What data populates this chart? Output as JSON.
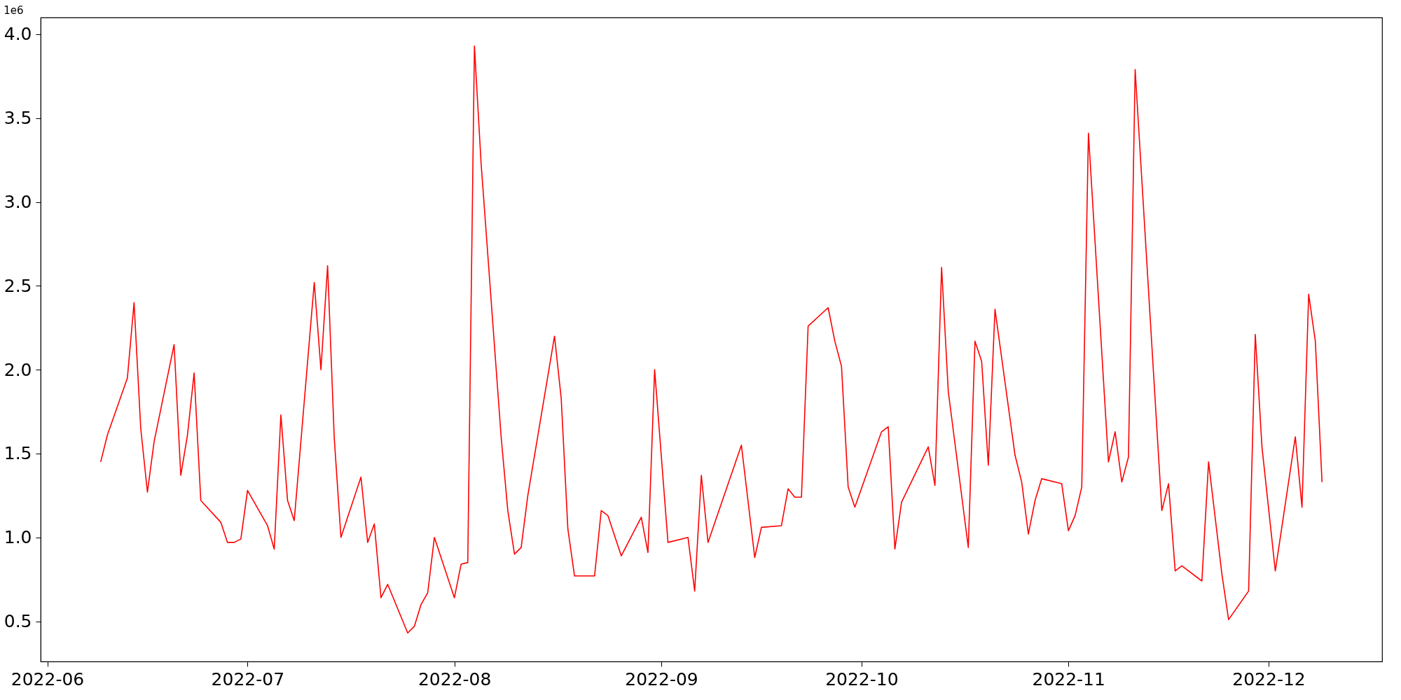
{
  "chart_data": {
    "type": "line",
    "annotations": [
      "1e6"
    ],
    "x": [
      "2022-06-09",
      "2022-06-10",
      "2022-06-13",
      "2022-06-14",
      "2022-06-15",
      "2022-06-16",
      "2022-06-17",
      "2022-06-20",
      "2022-06-21",
      "2022-06-22",
      "2022-06-23",
      "2022-06-24",
      "2022-06-27",
      "2022-06-28",
      "2022-06-29",
      "2022-06-30",
      "2022-07-01",
      "2022-07-04",
      "2022-07-05",
      "2022-07-06",
      "2022-07-07",
      "2022-07-08",
      "2022-07-11",
      "2022-07-12",
      "2022-07-13",
      "2022-07-14",
      "2022-07-15",
      "2022-07-18",
      "2022-07-19",
      "2022-07-20",
      "2022-07-21",
      "2022-07-22",
      "2022-07-25",
      "2022-07-26",
      "2022-07-27",
      "2022-07-28",
      "2022-07-29",
      "2022-08-01",
      "2022-08-02",
      "2022-08-03",
      "2022-08-04",
      "2022-08-05",
      "2022-08-08",
      "2022-08-09",
      "2022-08-10",
      "2022-08-11",
      "2022-08-12",
      "2022-08-16",
      "2022-08-17",
      "2022-08-18",
      "2022-08-19",
      "2022-08-22",
      "2022-08-23",
      "2022-08-24",
      "2022-08-26",
      "2022-08-29",
      "2022-08-30",
      "2022-08-31",
      "2022-09-02",
      "2022-09-05",
      "2022-09-06",
      "2022-09-07",
      "2022-09-08",
      "2022-09-13",
      "2022-09-15",
      "2022-09-16",
      "2022-09-19",
      "2022-09-20",
      "2022-09-21",
      "2022-09-22",
      "2022-09-23",
      "2022-09-26",
      "2022-09-27",
      "2022-09-28",
      "2022-09-29",
      "2022-09-30",
      "2022-10-04",
      "2022-10-05",
      "2022-10-06",
      "2022-10-07",
      "2022-10-11",
      "2022-10-12",
      "2022-10-13",
      "2022-10-14",
      "2022-10-17",
      "2022-10-18",
      "2022-10-19",
      "2022-10-20",
      "2022-10-21",
      "2022-10-24",
      "2022-10-25",
      "2022-10-26",
      "2022-10-27",
      "2022-10-28",
      "2022-10-31",
      "2022-11-01",
      "2022-11-02",
      "2022-11-03",
      "2022-11-04",
      "2022-11-07",
      "2022-11-08",
      "2022-11-09",
      "2022-11-10",
      "2022-11-11",
      "2022-11-15",
      "2022-11-16",
      "2022-11-17",
      "2022-11-18",
      "2022-11-21",
      "2022-11-22",
      "2022-11-24",
      "2022-11-25",
      "2022-11-28",
      "2022-11-29",
      "2022-11-30",
      "2022-12-02",
      "2022-12-05",
      "2022-12-06",
      "2022-12-07",
      "2022-12-08",
      "2022-12-09"
    ],
    "series": [
      {
        "color": "#ff0000",
        "values": [
          1.45,
          1.61,
          1.95,
          2.4,
          1.65,
          1.27,
          1.57,
          2.15,
          1.37,
          1.61,
          1.98,
          1.22,
          1.09,
          0.97,
          0.97,
          0.99,
          1.28,
          1.07,
          0.93,
          1.73,
          1.22,
          1.1,
          2.52,
          2.0,
          2.62,
          1.59,
          1.0,
          1.36,
          0.97,
          1.08,
          0.64,
          0.72,
          0.43,
          0.47,
          0.6,
          0.67,
          1.0,
          0.64,
          0.84,
          0.85,
          3.93,
          3.23,
          1.6,
          1.16,
          0.9,
          0.94,
          1.25,
          2.2,
          1.83,
          1.05,
          0.77,
          0.77,
          1.16,
          1.13,
          0.89,
          1.12,
          0.91,
          2.0,
          0.97,
          1.0,
          0.68,
          1.37,
          0.97,
          1.55,
          0.88,
          1.06,
          1.07,
          1.29,
          1.24,
          1.24,
          2.26,
          2.37,
          2.17,
          2.02,
          1.3,
          1.18,
          1.63,
          1.66,
          0.93,
          1.21,
          1.54,
          1.31,
          2.61,
          1.87,
          0.94,
          2.17,
          2.05,
          1.43,
          2.36,
          1.49,
          1.33,
          1.02,
          1.22,
          1.35,
          1.32,
          1.04,
          1.13,
          1.3,
          3.41,
          1.45,
          1.63,
          1.33,
          1.48,
          3.79,
          1.16,
          1.32,
          0.8,
          0.83,
          0.74,
          1.45,
          0.78,
          0.51,
          0.68,
          2.21,
          1.54,
          0.8,
          1.6,
          1.18,
          2.45,
          2.17,
          1.33
        ]
      }
    ],
    "xlim": [
      "2022-05-31",
      "2022-12-18"
    ],
    "xticks": [
      {
        "value": "2022-06-01",
        "label": "2022-06"
      },
      {
        "value": "2022-07-01",
        "label": "2022-07"
      },
      {
        "value": "2022-08-01",
        "label": "2022-08"
      },
      {
        "value": "2022-09-01",
        "label": "2022-09"
      },
      {
        "value": "2022-10-01",
        "label": "2022-10"
      },
      {
        "value": "2022-11-01",
        "label": "2022-11"
      },
      {
        "value": "2022-12-01",
        "label": "2022-12"
      }
    ],
    "ylim": [
      0.26,
      4.1
    ],
    "yticks": [
      {
        "value": 0.5,
        "label": "0.5"
      },
      {
        "value": 1,
        "label": "1.0"
      },
      {
        "value": 1.5,
        "label": "1.5"
      },
      {
        "value": 2,
        "label": "2.0"
      },
      {
        "value": 2.5,
        "label": "2.5"
      },
      {
        "value": 3,
        "label": "3.0"
      },
      {
        "value": 3.5,
        "label": "3.5"
      },
      {
        "value": 4,
        "label": "4.0"
      }
    ],
    "grid": false,
    "legend": false
  }
}
